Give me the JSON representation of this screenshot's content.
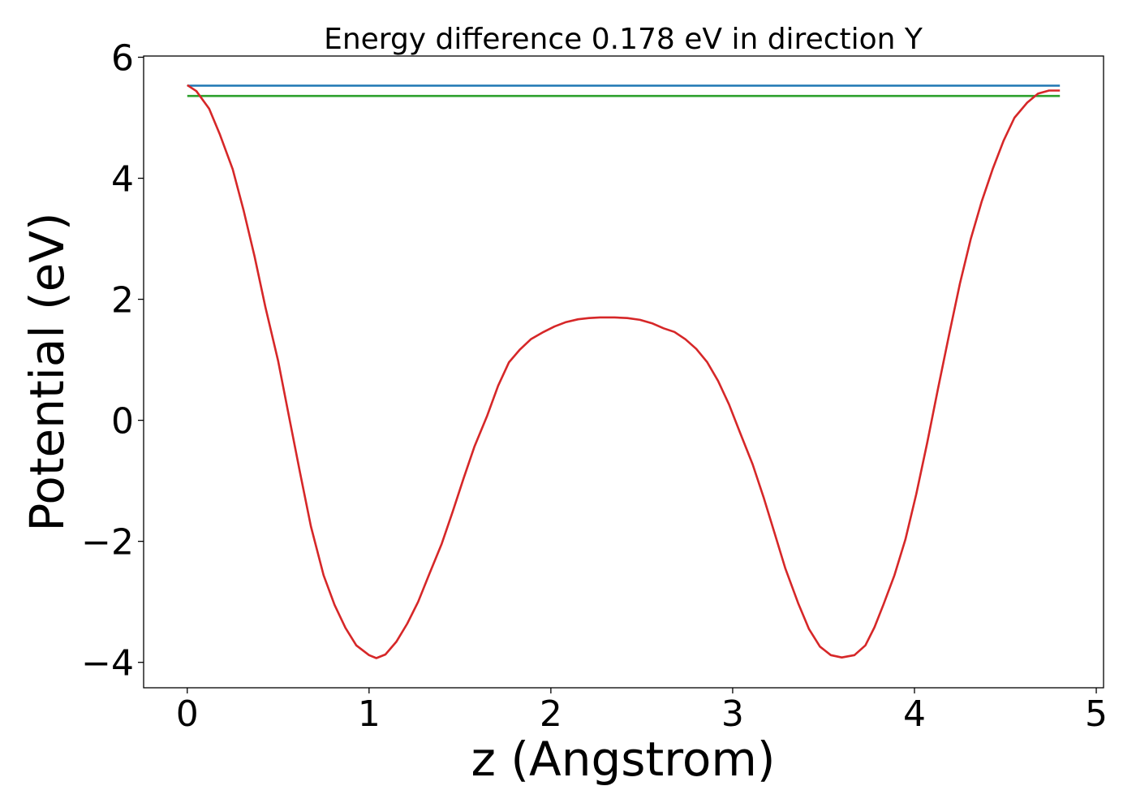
{
  "chart_data": {
    "type": "line",
    "title": "Energy difference 0.178 eV in direction Y",
    "xlabel": "z (Angstrom)",
    "ylabel": "Potential (eV)",
    "xlim": [
      -0.24,
      5.04
    ],
    "ylim": [
      -4.42,
      6.02
    ],
    "xticks": [
      0,
      1,
      2,
      3,
      4,
      5
    ],
    "xtick_labels": [
      "0",
      "1",
      "2",
      "3",
      "4",
      "5"
    ],
    "yticks": [
      -4,
      -2,
      0,
      2,
      4,
      6
    ],
    "ytick_labels": [
      "−4",
      "−2",
      "0",
      "2",
      "4",
      "6"
    ],
    "grid": false,
    "series": [
      {
        "color": "#1f77b4",
        "x": [
          0,
          4.8
        ],
        "y": [
          5.53,
          5.53
        ]
      },
      {
        "color": "#2ca02c",
        "x": [
          0,
          4.8
        ],
        "y": [
          5.36,
          5.36
        ]
      },
      {
        "color": "#d62728",
        "x": [
          0,
          0.05,
          0.12,
          0.18,
          0.25,
          0.31,
          0.37,
          0.43,
          0.5,
          0.56,
          0.62,
          0.68,
          0.75,
          0.81,
          0.87,
          0.93,
          1.0,
          1.04,
          1.09,
          1.15,
          1.21,
          1.27,
          1.33,
          1.4,
          1.46,
          1.52,
          1.58,
          1.65,
          1.71,
          1.77,
          1.83,
          1.89,
          1.96,
          2.02,
          2.08,
          2.15,
          2.21,
          2.27,
          2.35,
          2.42,
          2.49,
          2.56,
          2.62,
          2.68,
          2.74,
          2.8,
          2.86,
          2.92,
          2.98,
          3.04,
          3.11,
          3.17,
          3.23,
          3.29,
          3.36,
          3.42,
          3.48,
          3.54,
          3.6,
          3.67,
          3.73,
          3.78,
          3.83,
          3.89,
          3.95,
          4.01,
          4.07,
          4.13,
          4.19,
          4.25,
          4.31,
          4.37,
          4.43,
          4.49,
          4.55,
          4.62,
          4.68,
          4.74,
          4.8
        ],
        "y": [
          5.54,
          5.44,
          5.15,
          4.72,
          4.15,
          3.47,
          2.71,
          1.87,
          0.98,
          0.06,
          -0.86,
          -1.75,
          -2.56,
          -3.05,
          -3.43,
          -3.72,
          -3.88,
          -3.93,
          -3.87,
          -3.66,
          -3.36,
          -3.0,
          -2.55,
          -2.04,
          -1.51,
          -0.96,
          -0.43,
          0.08,
          0.57,
          0.96,
          1.17,
          1.34,
          1.46,
          1.55,
          1.62,
          1.67,
          1.69,
          1.7,
          1.7,
          1.69,
          1.66,
          1.6,
          1.52,
          1.46,
          1.34,
          1.18,
          0.96,
          0.65,
          0.26,
          -0.2,
          -0.73,
          -1.27,
          -1.86,
          -2.45,
          -3.02,
          -3.45,
          -3.74,
          -3.88,
          -3.92,
          -3.88,
          -3.72,
          -3.42,
          -3.04,
          -2.56,
          -1.97,
          -1.22,
          -0.37,
          0.53,
          1.41,
          2.26,
          3.0,
          3.62,
          4.15,
          4.62,
          5.0,
          5.25,
          5.4,
          5.45,
          5.45
        ]
      }
    ]
  }
}
